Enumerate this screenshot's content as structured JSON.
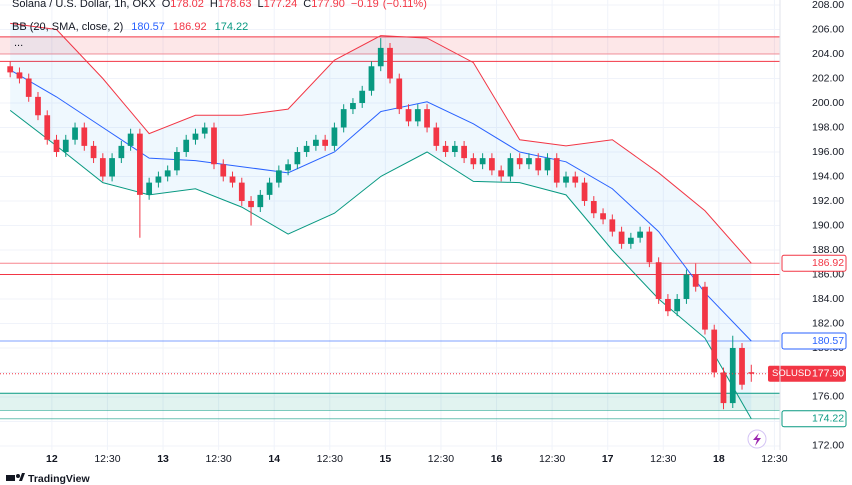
{
  "chart_data": {
    "type": "candlestick",
    "title": "Solana / U.S. Dollar, 1h, OKX",
    "ohlc_letters": [
      "O",
      "H",
      "L",
      "C"
    ],
    "change": {
      "value": -0.19,
      "label": "−0.19"
    },
    "change_pct": {
      "value": -0.11,
      "label": "(−0.11%)"
    },
    "indicator": "BB (20, SMA, close, 2)",
    "more": "...",
    "symbol": "SOLUSD",
    "last": {
      "value": 177.9,
      "label": "177.90"
    },
    "brand": "TradingView",
    "up_color": "#089981",
    "down_color": "#f23645",
    "x": [
      -9,
      -7,
      -5,
      -3,
      -1,
      1,
      3,
      5,
      7,
      9,
      11,
      13,
      15,
      17,
      19,
      21,
      23,
      25,
      27,
      29,
      31,
      33,
      35,
      37,
      39,
      41,
      43,
      45,
      47,
      49,
      51,
      53,
      55,
      57,
      59,
      61,
      63,
      65,
      67,
      69,
      71,
      73,
      75,
      77,
      79,
      81,
      83,
      85,
      87,
      89,
      91,
      93,
      95,
      97,
      99,
      101,
      103,
      105,
      107,
      109,
      111,
      113,
      115,
      117,
      119,
      121,
      123,
      125,
      127,
      129,
      131,
      133,
      135,
      137,
      139,
      141,
      143,
      145,
      147,
      149,
      151
    ],
    "open": [
      203,
      202.5,
      202,
      200.5,
      199,
      197,
      196,
      197,
      198,
      196.5,
      195.5,
      194,
      195.5,
      196.5,
      197.5,
      192.5,
      193.5,
      194,
      194.5,
      196,
      197,
      197.5,
      198,
      195,
      194,
      193.5,
      192,
      191.5,
      192.5,
      193.5,
      194.5,
      195,
      196,
      196.5,
      197,
      196.5,
      198,
      199.5,
      200,
      201,
      203,
      204.5,
      202,
      199.5,
      198.5,
      199.5,
      198,
      196.5,
      196,
      196.5,
      195.5,
      195,
      195.5,
      194.5,
      194,
      195.5,
      195,
      195.5,
      194.5,
      195.5,
      193.5,
      194,
      193.5,
      192,
      191,
      190.5,
      189.5,
      188.5,
      189,
      189.5,
      187,
      184,
      183,
      184,
      186,
      185,
      181.5,
      178,
      175.5,
      180,
      178.02
    ],
    "high": [
      203.4,
      202.9,
      202.4,
      200.9,
      199.4,
      197.4,
      197.4,
      198.4,
      198.4,
      196.9,
      195.9,
      195.9,
      196.9,
      197.9,
      197.9,
      193.9,
      194.4,
      194.9,
      196.4,
      197.4,
      197.9,
      198.4,
      198.4,
      195.4,
      194.4,
      193.9,
      192.4,
      192.9,
      193.9,
      194.9,
      195.4,
      196.4,
      196.9,
      197.4,
      197.4,
      198.4,
      199.9,
      200.4,
      201.4,
      203.4,
      205.3,
      204.9,
      202.4,
      199.9,
      199.9,
      199.9,
      198.4,
      196.9,
      196.9,
      196.9,
      195.9,
      195.9,
      195.9,
      194.9,
      195.9,
      195.9,
      195.9,
      195.9,
      195.9,
      195.9,
      194.4,
      194.4,
      193.9,
      192.4,
      191.4,
      190.9,
      189.9,
      189.4,
      189.9,
      189.9,
      187.4,
      184.4,
      184.4,
      186.4,
      186.9,
      185.4,
      181.9,
      178.4,
      181,
      180.4,
      178.63
    ],
    "low": [
      202.1,
      201.6,
      200.1,
      198.6,
      196.6,
      195.6,
      195.6,
      196.6,
      196.1,
      195.1,
      193.6,
      193.6,
      195.1,
      196.1,
      189,
      192.1,
      193.1,
      193.6,
      194.1,
      195.6,
      196.6,
      197.1,
      194.6,
      193.6,
      193.1,
      191.6,
      190,
      191.1,
      192.1,
      193.1,
      194.1,
      194.6,
      195.6,
      196.1,
      196.1,
      196.1,
      197.6,
      199.1,
      199.6,
      200.6,
      202.6,
      201.6,
      199.1,
      198.1,
      198.1,
      197.6,
      196.1,
      195.6,
      195.6,
      195.1,
      194.6,
      194.6,
      194.1,
      193.6,
      193.6,
      194.6,
      194.6,
      194.1,
      194.1,
      193.1,
      193.1,
      193.1,
      191.6,
      190.6,
      190.1,
      189.1,
      188.1,
      188.1,
      188.6,
      186.6,
      183.6,
      182.6,
      182.6,
      183.6,
      184.6,
      181.1,
      177.6,
      175,
      175.1,
      176.6,
      177.24
    ],
    "close": [
      202.5,
      202,
      200.5,
      199,
      197,
      196,
      197,
      198,
      196.5,
      195.5,
      194,
      195.5,
      196.5,
      197.5,
      192.5,
      193.5,
      194,
      194.5,
      196,
      197,
      197.5,
      198,
      195,
      194,
      193.5,
      192,
      191.5,
      192.5,
      193.5,
      194.5,
      195,
      196,
      196.5,
      197,
      196.5,
      198,
      199.5,
      200,
      201,
      203,
      204.5,
      202,
      199.5,
      198.5,
      199.5,
      198,
      196.5,
      196,
      196.5,
      195.5,
      195,
      195.5,
      194.5,
      194,
      195.5,
      195,
      195.5,
      194.5,
      195.5,
      193.5,
      194,
      193.5,
      192,
      191,
      190.5,
      189.5,
      188.5,
      189,
      189.5,
      187,
      184,
      183,
      184,
      186,
      185,
      181.5,
      178,
      175.5,
      180,
      177,
      177.9
    ],
    "bands": {
      "x": [
        -9,
        1,
        11,
        21,
        31,
        41,
        51,
        61,
        71,
        81,
        91,
        101,
        111,
        121,
        131,
        141,
        151
      ],
      "upper": [
        206.5,
        206,
        202,
        197.5,
        199,
        199,
        199.5,
        203.5,
        205.5,
        205.3,
        203.3,
        197,
        196.5,
        197,
        194.3,
        191.2,
        186.92
      ],
      "middle": [
        202.7,
        200.5,
        198,
        195.5,
        195.3,
        194.8,
        194.3,
        196,
        199.3,
        200.1,
        198.3,
        196,
        195.2,
        193,
        189.5,
        184.5,
        180.57
      ],
      "lower": [
        199.4,
        196.5,
        193.5,
        192.5,
        193,
        191.5,
        189.3,
        191,
        194,
        196,
        193.6,
        193.5,
        192.5,
        188,
        184,
        180.8,
        174.22
      ],
      "upper_color": "#f23645",
      "middle_color": "#2962ff",
      "lower_color": "#089981",
      "fill": "#2196f3"
    },
    "zones": [
      {
        "from": 205.4,
        "to": 204.0,
        "color": "#f23645"
      },
      {
        "from": 176.3,
        "to": 174.9,
        "color": "#089981"
      }
    ],
    "levels": [
      {
        "value": 203.4,
        "color": "#f23645"
      },
      {
        "value": 186.0,
        "color": "#f23645"
      }
    ],
    "xlim": [
      -11.2,
      157.2
    ],
    "ylim": [
      171.67,
      208.41
    ],
    "xticks": [
      {
        "value": 0,
        "label": "12"
      },
      {
        "value": 12,
        "label": "12:30"
      },
      {
        "value": 24,
        "label": "13"
      },
      {
        "value": 36,
        "label": "12:30"
      },
      {
        "value": 48,
        "label": "14"
      },
      {
        "value": 60,
        "label": "12:30"
      },
      {
        "value": 72,
        "label": "15"
      },
      {
        "value": 84,
        "label": "12:30"
      },
      {
        "value": 96,
        "label": "16"
      },
      {
        "value": 108,
        "label": "12:30"
      },
      {
        "value": 120,
        "label": "17"
      },
      {
        "value": 132,
        "label": "12:30"
      },
      {
        "value": 144,
        "label": "18"
      },
      {
        "value": 156,
        "label": "12:30"
      }
    ],
    "yticks": [
      {
        "value": 172,
        "label": "172.00"
      },
      {
        "value": 174,
        "label": "174.00"
      },
      {
        "value": 176,
        "label": "176.00"
      },
      {
        "value": 178,
        "label": "178.00"
      },
      {
        "value": 180,
        "label": "180.00"
      },
      {
        "value": 182,
        "label": "182.00"
      },
      {
        "value": 184,
        "label": "184.00"
      },
      {
        "value": 186,
        "label": "186.00"
      },
      {
        "value": 188,
        "label": "188.00"
      },
      {
        "value": 190,
        "label": "190.00"
      },
      {
        "value": 192,
        "label": "192.00"
      },
      {
        "value": 194,
        "label": "194.00"
      },
      {
        "value": 196,
        "label": "196.00"
      },
      {
        "value": 198,
        "label": "198.00"
      },
      {
        "value": 200,
        "label": "200.00"
      },
      {
        "value": 202,
        "label": "202.00"
      },
      {
        "value": 204,
        "label": "204.00"
      },
      {
        "value": 206,
        "label": "206.00"
      },
      {
        "value": 208,
        "label": "208.00"
      }
    ],
    "grid": true
  }
}
